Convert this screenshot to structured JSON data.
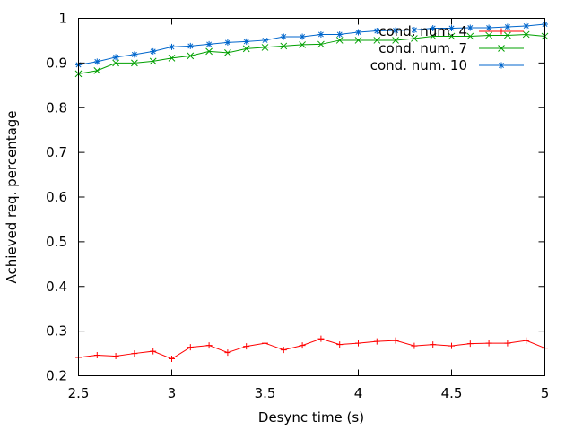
{
  "chart_data": {
    "type": "line",
    "title": "",
    "xlabel": "Desync time (s)",
    "ylabel": "Achieved req. percentage",
    "xlim": [
      2.5,
      5
    ],
    "ylim": [
      0.2,
      1
    ],
    "xticks": [
      "2.5",
      "3",
      "3.5",
      "4",
      "4.5",
      "5"
    ],
    "yticks": [
      "0.2",
      "0.3",
      "0.4",
      "0.5",
      "0.6",
      "0.7",
      "0.8",
      "0.9",
      "1"
    ],
    "grid": false,
    "legend_position": "top-right",
    "x": [
      2.5,
      2.6,
      2.7,
      2.8,
      2.9,
      3.0,
      3.1,
      3.2,
      3.3,
      3.4,
      3.5,
      3.6,
      3.7,
      3.8,
      3.9,
      4.0,
      4.1,
      4.2,
      4.3,
      4.4,
      4.5,
      4.6,
      4.7,
      4.8,
      4.9,
      5.0
    ],
    "series": [
      {
        "name": "cond. num. 4",
        "color": "#ff0000",
        "marker": "+",
        "values": [
          0.241,
          0.246,
          0.244,
          0.25,
          0.255,
          0.238,
          0.264,
          0.268,
          0.252,
          0.266,
          0.273,
          0.258,
          0.268,
          0.283,
          0.27,
          0.273,
          0.277,
          0.279,
          0.267,
          0.27,
          0.267,
          0.272,
          0.273,
          0.273,
          0.279,
          0.262
        ]
      },
      {
        "name": "cond. num. 7",
        "color": "#00a000",
        "marker": "x",
        "values": [
          0.876,
          0.883,
          0.9,
          0.9,
          0.904,
          0.911,
          0.916,
          0.926,
          0.923,
          0.932,
          0.935,
          0.938,
          0.941,
          0.942,
          0.951,
          0.951,
          0.951,
          0.951,
          0.955,
          0.96,
          0.96,
          0.96,
          0.962,
          0.962,
          0.964,
          0.96
        ]
      },
      {
        "name": "cond. num. 10",
        "color": "#0066cc",
        "marker": "*",
        "values": [
          0.896,
          0.903,
          0.913,
          0.919,
          0.926,
          0.936,
          0.938,
          0.942,
          0.946,
          0.948,
          0.951,
          0.959,
          0.959,
          0.964,
          0.964,
          0.969,
          0.972,
          0.973,
          0.974,
          0.978,
          0.978,
          0.979,
          0.979,
          0.981,
          0.983,
          0.987
        ]
      }
    ]
  }
}
